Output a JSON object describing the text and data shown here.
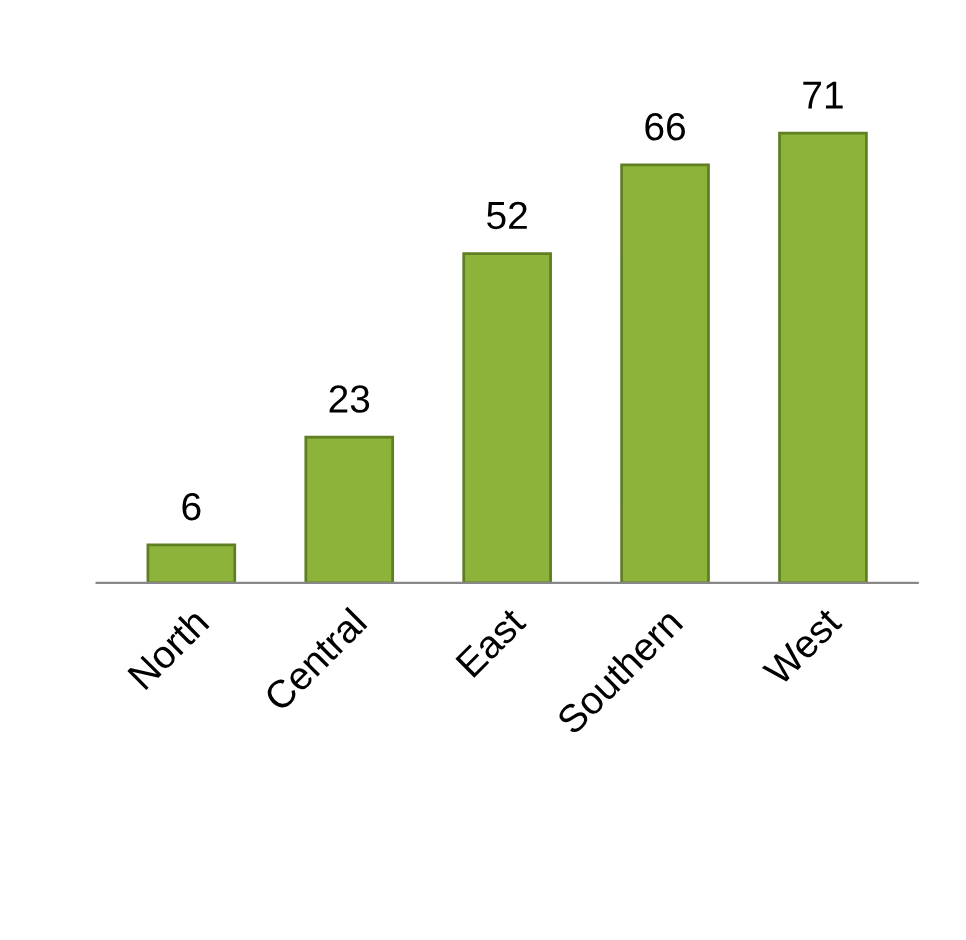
{
  "chart_data": {
    "type": "bar",
    "categories": [
      "North",
      "Central",
      "East",
      "Southern",
      "West"
    ],
    "values": [
      6,
      23,
      52,
      66,
      71
    ],
    "color": "#8db33a",
    "data_labels": true,
    "grid": false,
    "legend": false
  }
}
